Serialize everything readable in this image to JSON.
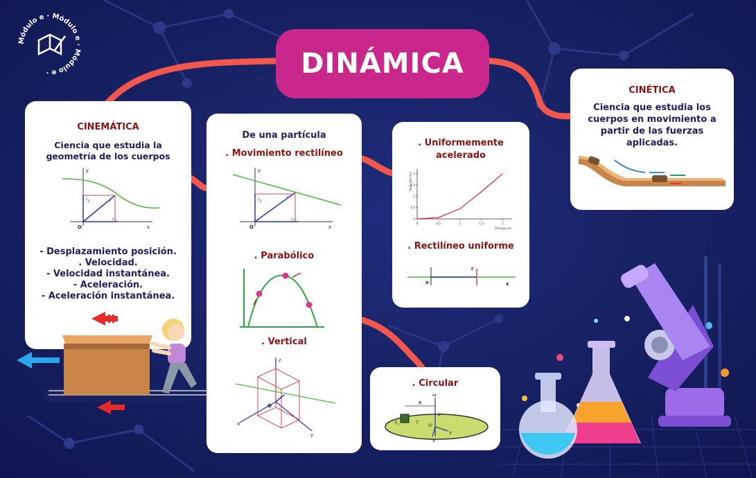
{
  "logo": {
    "ring_text": "Módulo e · Módulo e · Módulo e ·"
  },
  "title": "DINÁMICA",
  "cinematica": {
    "heading": "CINEMÁTICA",
    "description": "Ciencia que estudia la geometría de los cuerpos",
    "list": [
      "- Desplazamiento posición.",
      ". Velocidad.",
      "- Velocidad instantánea.",
      "- Aceleración.",
      "- Aceleración instantánea."
    ],
    "graph": {
      "axis_x": "x",
      "axis_y": "y",
      "origin": "O",
      "r1": "r",
      "r1_sub": "1",
      "r2": "r",
      "r2_sub": "2"
    }
  },
  "particula": {
    "heading": "De una partícula",
    "rectilineo": "Movimiento rectilíneo",
    "parabolico": "Parabólico",
    "vertical": "Vertical",
    "graph_rect": {
      "axis_x": "x",
      "axis_y": "y",
      "origin": "O",
      "r1": "r",
      "r1_sub": "1",
      "r2": "r",
      "r2_sub": "2"
    },
    "graph_vertical": {
      "axis_x": "x",
      "axis_y": "y",
      "axis_z": "z",
      "origin": "O"
    }
  },
  "uniforme_acelerado": {
    "heading": "Uniformemente acelerado",
    "chart": {
      "ylabel": "Posición (m)",
      "xlabel": "Tiempo (s)"
    }
  },
  "rectilineo_uniforme": {
    "heading": "Rectilíneo uniforme",
    "axis_origin": "o",
    "axis_r": "r",
    "axis_x": "x"
  },
  "circular": {
    "heading": "Circular",
    "labels": {
      "omega": "ω",
      "R": "R",
      "Fr": "F",
      "Fr_sub": "r",
      "T": "T",
      "z": "z'",
      "O": "O'",
      "y": "y",
      "x": "x'"
    }
  },
  "cinetica": {
    "heading": "CINÉTICA",
    "description": "Ciencia que estudia los cuerpos en movimiento a partir de las fuerzas aplicadas."
  },
  "colors": {
    "accent": "#c9278a",
    "connector": "#f1574d",
    "background": "#141d5c",
    "heading_red": "#8b1212",
    "text_dark": "#1e1f5c"
  },
  "chart_data": {
    "type": "line",
    "xlabel": "Tiempo (s)",
    "ylabel": "Posición (m)",
    "x_ticks": [
      "0",
      "0,5",
      "1",
      "1,5",
      "2"
    ],
    "y_ticks": [
      "0",
      "0,5",
      "1",
      "1,5",
      "2"
    ],
    "xlim": [
      0,
      2.2
    ],
    "ylim": [
      0,
      2.2
    ],
    "series": [
      {
        "x": [
          0,
          0.5,
          1,
          1.5,
          2
        ],
        "y": [
          0,
          0.06,
          0.45,
          1.2,
          2.0
        ]
      }
    ]
  }
}
